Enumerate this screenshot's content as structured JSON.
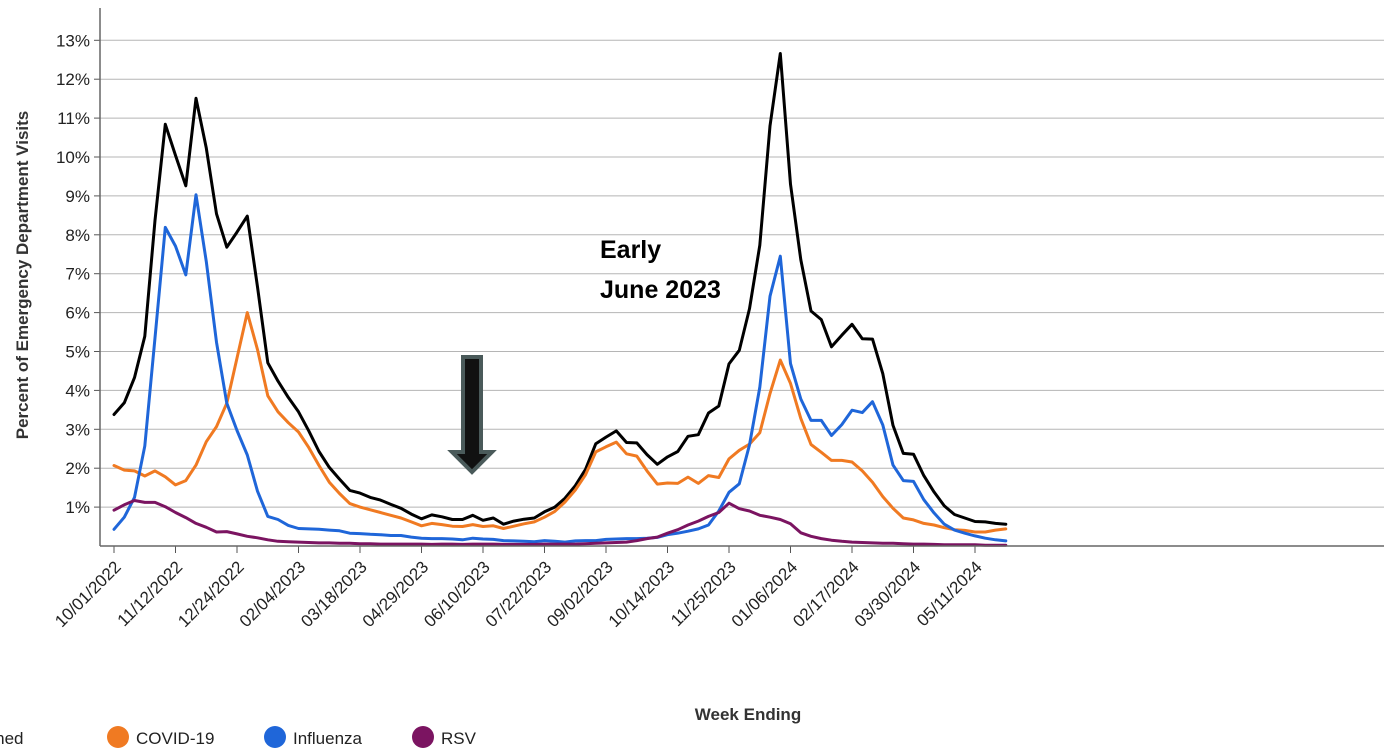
{
  "chart_data": {
    "type": "line",
    "title": "",
    "xlabel": "Week Ending",
    "ylabel": "Percent of Emergency Department Visits",
    "ylim": [
      0,
      13.5
    ],
    "y_ticks": [
      "1%",
      "2%",
      "3%",
      "4%",
      "5%",
      "6%",
      "7%",
      "8%",
      "9%",
      "10%",
      "11%",
      "12%",
      "13%"
    ],
    "x_tick_labels": [
      "10/01/2022",
      "11/12/2022",
      "12/24/2022",
      "02/04/2023",
      "03/18/2023",
      "04/29/2023",
      "06/10/2023",
      "07/22/2023",
      "09/02/2023",
      "10/14/2023",
      "11/25/2023",
      "01/06/2024",
      "02/17/2024",
      "03/30/2024",
      "05/11/2024"
    ],
    "x_start": "10/01/2022",
    "weeks": 88,
    "grid": true,
    "legend_position": "bottom-left",
    "annotation": {
      "line1": "Early",
      "line2": "June 2023",
      "arrow_week": "06/10/2023"
    },
    "series": [
      {
        "name": "Combined",
        "color": "#000000",
        "values": [
          3.38,
          3.68,
          4.33,
          5.39,
          8.37,
          10.84,
          10.04,
          9.26,
          11.51,
          10.23,
          8.54,
          7.68,
          8.07,
          8.48,
          6.66,
          4.71,
          4.24,
          3.82,
          3.45,
          2.96,
          2.43,
          2.02,
          1.72,
          1.43,
          1.36,
          1.25,
          1.18,
          1.07,
          0.97,
          0.82,
          0.7,
          0.8,
          0.75,
          0.68,
          0.68,
          0.79,
          0.66,
          0.72,
          0.56,
          0.64,
          0.69,
          0.72,
          0.88,
          1.0,
          1.23,
          1.55,
          1.97,
          2.63,
          2.8,
          2.96,
          2.66,
          2.65,
          2.35,
          2.1,
          2.29,
          2.43,
          2.82,
          2.86,
          3.42,
          3.6,
          4.68,
          5.03,
          6.1,
          7.73,
          10.8,
          12.66,
          9.3,
          7.36,
          6.04,
          5.82,
          5.12,
          5.42,
          5.7,
          5.33,
          5.32,
          4.43,
          3.1,
          2.38,
          2.36,
          1.81,
          1.39,
          1.03,
          0.81,
          0.72,
          0.63,
          0.62,
          0.58,
          0.56
        ]
      },
      {
        "name": "COVID-19",
        "color": "#F07A22",
        "values": [
          2.07,
          1.95,
          1.93,
          1.8,
          1.93,
          1.78,
          1.57,
          1.68,
          2.08,
          2.68,
          3.07,
          3.67,
          4.83,
          6.0,
          5.05,
          3.86,
          3.45,
          3.17,
          2.93,
          2.53,
          2.07,
          1.64,
          1.35,
          1.09,
          1.0,
          0.93,
          0.86,
          0.79,
          0.72,
          0.62,
          0.52,
          0.58,
          0.55,
          0.51,
          0.5,
          0.55,
          0.5,
          0.52,
          0.45,
          0.51,
          0.57,
          0.62,
          0.74,
          0.89,
          1.13,
          1.44,
          1.83,
          2.42,
          2.55,
          2.67,
          2.37,
          2.31,
          1.93,
          1.59,
          1.62,
          1.61,
          1.77,
          1.61,
          1.81,
          1.76,
          2.24,
          2.46,
          2.62,
          2.91,
          3.92,
          4.78,
          4.18,
          3.28,
          2.61,
          2.41,
          2.2,
          2.2,
          2.16,
          1.93,
          1.64,
          1.27,
          0.97,
          0.72,
          0.67,
          0.58,
          0.54,
          0.47,
          0.42,
          0.4,
          0.36,
          0.36,
          0.41,
          0.44
        ]
      },
      {
        "name": "Influenza",
        "color": "#1F66D9",
        "values": [
          0.43,
          0.74,
          1.25,
          2.57,
          5.35,
          8.19,
          7.71,
          6.97,
          9.03,
          7.31,
          5.24,
          3.67,
          2.97,
          2.34,
          1.41,
          0.76,
          0.68,
          0.53,
          0.45,
          0.44,
          0.43,
          0.41,
          0.39,
          0.33,
          0.32,
          0.3,
          0.29,
          0.27,
          0.27,
          0.23,
          0.2,
          0.19,
          0.19,
          0.18,
          0.16,
          0.2,
          0.18,
          0.17,
          0.14,
          0.13,
          0.12,
          0.11,
          0.14,
          0.12,
          0.1,
          0.13,
          0.14,
          0.14,
          0.17,
          0.18,
          0.19,
          0.19,
          0.2,
          0.22,
          0.29,
          0.33,
          0.38,
          0.44,
          0.54,
          0.9,
          1.38,
          1.6,
          2.6,
          4.08,
          6.42,
          7.45,
          4.69,
          3.78,
          3.23,
          3.23,
          2.84,
          3.12,
          3.49,
          3.43,
          3.71,
          3.11,
          2.08,
          1.68,
          1.66,
          1.19,
          0.85,
          0.56,
          0.41,
          0.33,
          0.26,
          0.2,
          0.16,
          0.13
        ]
      },
      {
        "name": "RSV",
        "color": "#7B1461",
        "values": [
          0.92,
          1.06,
          1.17,
          1.12,
          1.12,
          1.01,
          0.86,
          0.73,
          0.58,
          0.48,
          0.36,
          0.37,
          0.31,
          0.25,
          0.21,
          0.16,
          0.12,
          0.11,
          0.1,
          0.09,
          0.08,
          0.08,
          0.07,
          0.07,
          0.06,
          0.06,
          0.05,
          0.05,
          0.05,
          0.05,
          0.05,
          0.04,
          0.05,
          0.05,
          0.04,
          0.05,
          0.05,
          0.05,
          0.04,
          0.04,
          0.04,
          0.04,
          0.05,
          0.05,
          0.05,
          0.05,
          0.06,
          0.07,
          0.08,
          0.09,
          0.1,
          0.14,
          0.19,
          0.23,
          0.33,
          0.42,
          0.54,
          0.64,
          0.76,
          0.86,
          1.1,
          0.96,
          0.9,
          0.79,
          0.74,
          0.68,
          0.57,
          0.34,
          0.25,
          0.19,
          0.15,
          0.12,
          0.1,
          0.09,
          0.08,
          0.07,
          0.07,
          0.06,
          0.05,
          0.05,
          0.04,
          0.03,
          0.03,
          0.03,
          0.03,
          0.02,
          0.02,
          0.02
        ]
      }
    ]
  }
}
